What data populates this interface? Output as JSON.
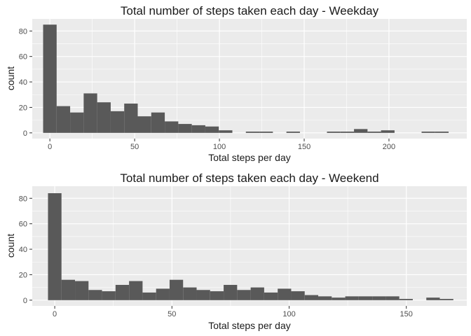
{
  "chart_data": [
    {
      "type": "bar",
      "title": "Total number of steps taken each day - Weekday",
      "xlabel": "Total steps per day",
      "ylabel": "count",
      "xlim": [
        -10.4,
        245.9
      ],
      "ylim": [
        -4.5,
        89.5
      ],
      "xticks": [
        0,
        50,
        100,
        150,
        200
      ],
      "yticks": [
        0,
        20,
        40,
        60,
        80
      ],
      "binwidth": 7.97,
      "bins": [
        {
          "x": 0.0,
          "count": 85
        },
        {
          "x": 7.97,
          "count": 21
        },
        {
          "x": 15.94,
          "count": 16
        },
        {
          "x": 23.92,
          "count": 31
        },
        {
          "x": 31.89,
          "count": 24
        },
        {
          "x": 39.86,
          "count": 17
        },
        {
          "x": 47.83,
          "count": 23
        },
        {
          "x": 55.8,
          "count": 13
        },
        {
          "x": 63.78,
          "count": 16
        },
        {
          "x": 71.75,
          "count": 9
        },
        {
          "x": 79.72,
          "count": 7
        },
        {
          "x": 87.69,
          "count": 6
        },
        {
          "x": 95.66,
          "count": 5
        },
        {
          "x": 103.64,
          "count": 2
        },
        {
          "x": 111.61,
          "count": 0
        },
        {
          "x": 119.58,
          "count": 1
        },
        {
          "x": 127.55,
          "count": 1
        },
        {
          "x": 135.53,
          "count": 0
        },
        {
          "x": 143.5,
          "count": 1
        },
        {
          "x": 151.47,
          "count": 0
        },
        {
          "x": 159.44,
          "count": 0
        },
        {
          "x": 167.41,
          "count": 1
        },
        {
          "x": 175.39,
          "count": 1
        },
        {
          "x": 183.36,
          "count": 3
        },
        {
          "x": 191.33,
          "count": 1
        },
        {
          "x": 199.3,
          "count": 2
        },
        {
          "x": 207.27,
          "count": 0
        },
        {
          "x": 215.25,
          "count": 0
        },
        {
          "x": 223.22,
          "count": 1
        },
        {
          "x": 231.19,
          "count": 1
        }
      ]
    },
    {
      "type": "bar",
      "title": "Total number of steps taken each day - Weekend",
      "xlabel": "Total steps per day",
      "ylabel": "count",
      "xlim": [
        -9.6,
        175.8
      ],
      "ylim": [
        -4.5,
        89.5
      ],
      "xticks": [
        0,
        50,
        100,
        150
      ],
      "yticks": [
        0,
        20,
        40,
        60,
        80
      ],
      "binwidth": 5.76,
      "bins": [
        {
          "x": 0.0,
          "count": 84
        },
        {
          "x": 5.76,
          "count": 16
        },
        {
          "x": 11.53,
          "count": 15
        },
        {
          "x": 17.29,
          "count": 8
        },
        {
          "x": 23.06,
          "count": 7
        },
        {
          "x": 28.82,
          "count": 12
        },
        {
          "x": 34.59,
          "count": 15
        },
        {
          "x": 40.35,
          "count": 6
        },
        {
          "x": 46.12,
          "count": 9
        },
        {
          "x": 51.88,
          "count": 16
        },
        {
          "x": 57.65,
          "count": 10
        },
        {
          "x": 63.41,
          "count": 8
        },
        {
          "x": 69.18,
          "count": 7
        },
        {
          "x": 74.94,
          "count": 12
        },
        {
          "x": 80.71,
          "count": 8
        },
        {
          "x": 86.47,
          "count": 10
        },
        {
          "x": 92.24,
          "count": 6
        },
        {
          "x": 98.0,
          "count": 9
        },
        {
          "x": 103.76,
          "count": 7
        },
        {
          "x": 109.53,
          "count": 4
        },
        {
          "x": 115.29,
          "count": 3
        },
        {
          "x": 121.06,
          "count": 2
        },
        {
          "x": 126.82,
          "count": 3
        },
        {
          "x": 132.59,
          "count": 3
        },
        {
          "x": 138.35,
          "count": 3
        },
        {
          "x": 144.12,
          "count": 3
        },
        {
          "x": 149.88,
          "count": 1
        },
        {
          "x": 155.65,
          "count": 0
        },
        {
          "x": 161.41,
          "count": 2
        },
        {
          "x": 167.18,
          "count": 1
        }
      ]
    }
  ],
  "colors": {
    "panel_background": "#ebebeb",
    "grid_major": "#ffffff",
    "bar_fill": "#595959",
    "text": "#1a1a1a",
    "tick_text": "#4d4d4d",
    "tick_mark": "#333333"
  }
}
